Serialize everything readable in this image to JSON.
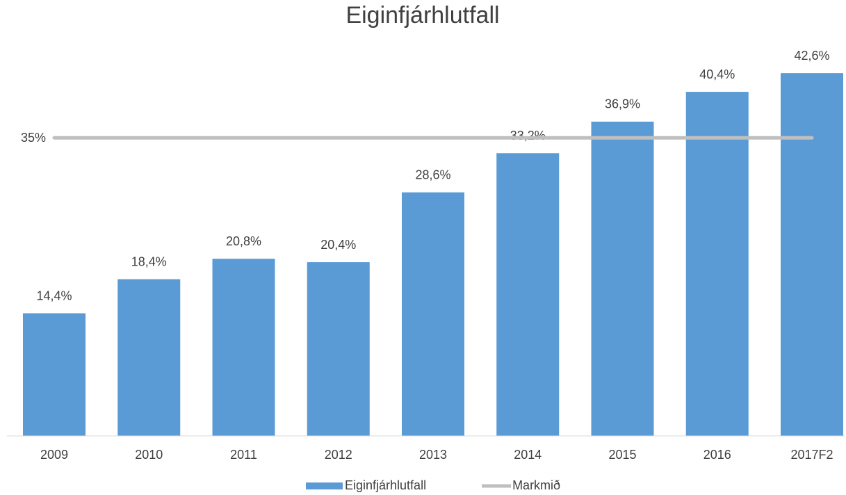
{
  "chart_data": {
    "type": "bar",
    "title": "Eiginfjárhlutfall",
    "categories": [
      "2009",
      "2010",
      "2011",
      "2012",
      "2013",
      "2014",
      "2015",
      "2016",
      "2017F2"
    ],
    "series": [
      {
        "name": "Eiginfjárhlutfall",
        "type": "bar",
        "color": "#5b9bd5",
        "values": [
          14.4,
          18.4,
          20.8,
          20.4,
          28.6,
          33.2,
          36.9,
          40.4,
          42.6
        ],
        "value_labels": [
          "14,4%",
          "18,4%",
          "20,8%",
          "20,4%",
          "28,6%",
          "33,2%",
          "36,9%",
          "40,4%",
          "42,6%"
        ]
      },
      {
        "name": "Markmið",
        "type": "line",
        "color": "#bfbfbf",
        "values": [
          35,
          35,
          35,
          35,
          35,
          35,
          35,
          35,
          35
        ],
        "value_labels": [
          "35%",
          null,
          null,
          null,
          null,
          null,
          null,
          null,
          null
        ]
      }
    ],
    "ylim": [
      0,
      45
    ],
    "legend": "bottom"
  }
}
